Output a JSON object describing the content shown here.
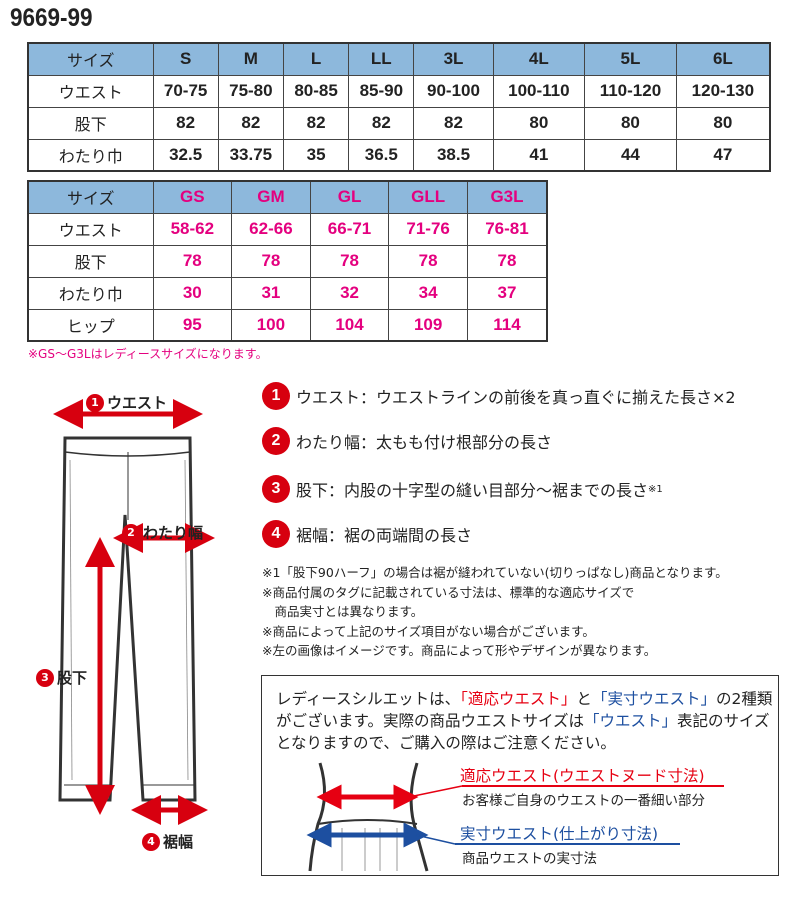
{
  "title": "9669-99",
  "table1": {
    "header": [
      "サイズ",
      "S",
      "M",
      "L",
      "LL",
      "3L",
      "4L",
      "5L",
      "6L"
    ],
    "rows": [
      [
        "ウエスト",
        "70-75",
        "75-80",
        "80-85",
        "85-90",
        "90-100",
        "100-110",
        "110-120",
        "120-130"
      ],
      [
        "股下",
        "82",
        "82",
        "82",
        "82",
        "82",
        "80",
        "80",
        "80"
      ],
      [
        "わたり巾",
        "32.5",
        "33.75",
        "35",
        "36.5",
        "38.5",
        "41",
        "44",
        "47"
      ]
    ]
  },
  "table2": {
    "header": [
      "サイズ",
      "GS",
      "GM",
      "GL",
      "GLL",
      "G3L"
    ],
    "rows": [
      [
        "ウエスト",
        "58-62",
        "62-66",
        "66-71",
        "71-76",
        "76-81"
      ],
      [
        "股下",
        "78",
        "78",
        "78",
        "78",
        "78"
      ],
      [
        "わたり巾",
        "30",
        "31",
        "32",
        "34",
        "37"
      ],
      [
        "ヒップ",
        "95",
        "100",
        "104",
        "109",
        "114"
      ]
    ]
  },
  "ladies_note": "※GS～G3Lはレディースサイズになります。",
  "diagram": {
    "labels": [
      {
        "num": "1",
        "text": "ウエスト"
      },
      {
        "num": "2",
        "text": "わたり幅"
      },
      {
        "num": "3",
        "text": "股下"
      },
      {
        "num": "4",
        "text": "裾幅"
      }
    ]
  },
  "legend": [
    {
      "num": "1",
      "text": "ウエスト：ウエストラインの前後を真っ直ぐに揃えた長さ×2",
      "suffix": ""
    },
    {
      "num": "2",
      "text": "わたり幅：太もも付け根部分の長さ",
      "suffix": ""
    },
    {
      "num": "3",
      "text": "股下：内股の十字型の縫い目部分～裾までの長さ",
      "suffix": "※1"
    },
    {
      "num": "4",
      "text": "裾幅：裾の両端間の長さ",
      "suffix": ""
    }
  ],
  "notes": [
    "※1「股下90ハーフ」の場合は裾が縫われていない(切りっぱなし)商品となります。",
    "※商品付属のタグに記載されている寸法は、標準的な適応サイズで",
    "　商品実寸とは異なります。",
    "※商品によって上記のサイズ項目がない場合がございます。",
    "※左の画像はイメージです。商品によって形やデザインが異なります。"
  ],
  "box": {
    "t1": "レディースシルエットは、",
    "t2": "「適応ウエスト」",
    "t3": "と",
    "t4": "「実寸ウエスト」",
    "t5": "の2種類がございます。実際の商品ウエストサイズは",
    "t6": "「ウエスト」",
    "t7": "表記のサイズとなりますので、ご購入の際はご注意ください。",
    "red_label": "適応ウエスト(ウエストヌード寸法)",
    "red_sub": "お客様ご自身のウエストの一番細い部分",
    "blue_label": "実寸ウエスト(仕上がり寸法)",
    "blue_sub": "商品ウエストの実寸法"
  },
  "colors": {
    "header_bg": "#8db8dc",
    "pink": "#e4007f",
    "red": "#d7000f",
    "blue": "#1d4fa0"
  }
}
